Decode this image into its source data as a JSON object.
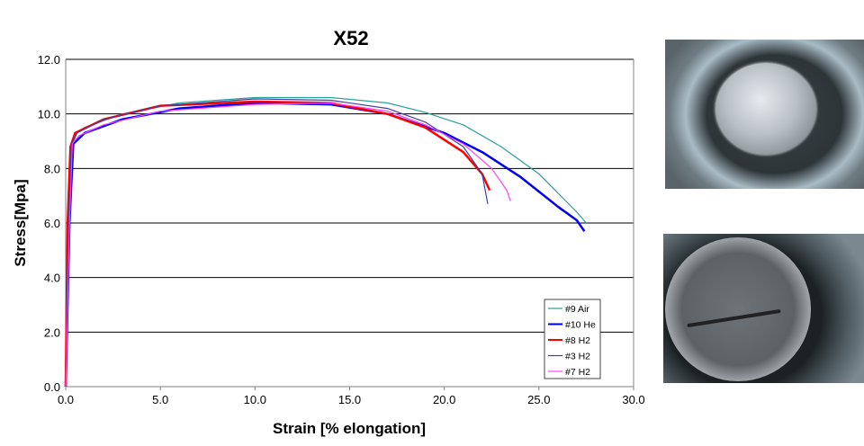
{
  "chart_data": {
    "type": "line",
    "title": "X52",
    "xlabel": "Strain [% elongation]",
    "ylabel": "Stress[Mpa]",
    "xlim": [
      0,
      30
    ],
    "ylim": [
      0,
      12
    ],
    "xticks": [
      "0.0",
      "5.0",
      "10.0",
      "15.0",
      "20.0",
      "25.0",
      "30.0"
    ],
    "yticks": [
      "0.0",
      "2.0",
      "4.0",
      "6.0",
      "8.0",
      "10.0",
      "12.0"
    ],
    "grid": "horizontal",
    "legend": "bottom-right",
    "series": [
      {
        "name": "#9 Air",
        "color": "#2aa198",
        "x": [
          0,
          0.15,
          0.3,
          0.6,
          1,
          3,
          6,
          10,
          14,
          17,
          19,
          21,
          23,
          25,
          27,
          27.5
        ],
        "y": [
          0,
          6,
          8.8,
          9.3,
          9.5,
          10.0,
          10.4,
          10.6,
          10.6,
          10.4,
          10.05,
          9.6,
          8.8,
          7.8,
          6.4,
          6.0
        ]
      },
      {
        "name": "#10 He",
        "color": "#0000ee",
        "x": [
          0,
          0.2,
          0.4,
          0.7,
          1,
          3,
          6,
          10,
          14,
          17,
          20,
          22,
          24,
          26,
          27,
          27.4
        ],
        "y": [
          0,
          6,
          8.9,
          9.1,
          9.3,
          9.8,
          10.2,
          10.4,
          10.35,
          10.0,
          9.3,
          8.6,
          7.7,
          6.6,
          6.1,
          5.7
        ]
      },
      {
        "name": "#8 H2",
        "color": "#ff0000",
        "x": [
          0,
          0.1,
          0.25,
          0.5,
          2,
          5,
          10,
          14,
          17,
          19,
          21,
          22,
          22.4
        ],
        "y": [
          0,
          6,
          8.8,
          9.3,
          9.8,
          10.3,
          10.45,
          10.4,
          10.0,
          9.5,
          8.6,
          7.8,
          7.2
        ]
      },
      {
        "name": "#3 H2",
        "color": "#4040a0",
        "x": [
          0,
          0.15,
          0.3,
          0.6,
          2,
          5,
          10,
          14,
          17,
          19,
          21,
          22,
          22.3
        ],
        "y": [
          0,
          6,
          8.9,
          9.3,
          9.8,
          10.3,
          10.55,
          10.5,
          10.2,
          9.7,
          8.8,
          7.8,
          6.7
        ]
      },
      {
        "name": "#7 H2",
        "color": "#ff40ff",
        "x": [
          0,
          0.2,
          0.35,
          0.7,
          2,
          5,
          10,
          14,
          17,
          19,
          21,
          22.5,
          23.3,
          23.5
        ],
        "y": [
          0,
          6,
          8.9,
          9.2,
          9.6,
          10.1,
          10.35,
          10.4,
          10.1,
          9.6,
          8.9,
          8.0,
          7.2,
          6.8
        ]
      }
    ]
  }
}
